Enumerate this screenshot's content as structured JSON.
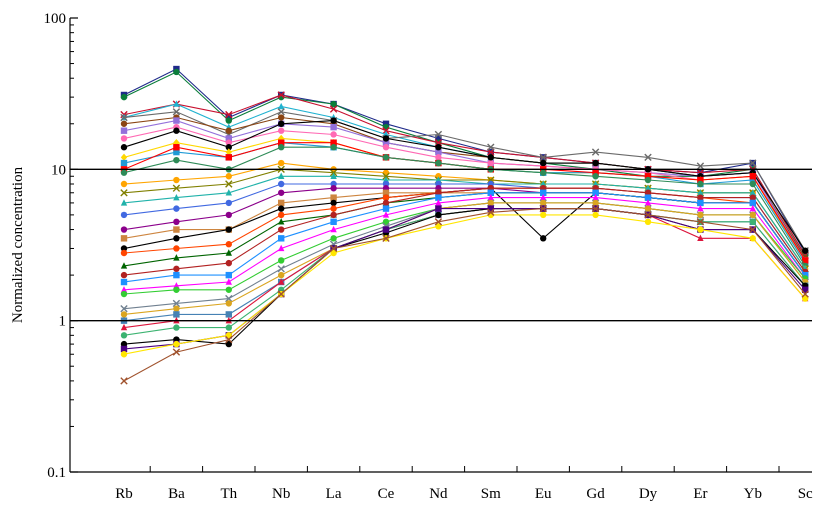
{
  "chart_data": {
    "type": "line",
    "title": "",
    "xlabel": "",
    "ylabel": "Normalized concentration",
    "yscale": "log",
    "ylim": [
      0.1,
      100
    ],
    "yticks": [
      "0.1",
      "1",
      "10",
      "100"
    ],
    "reference_lines": [
      1,
      10
    ],
    "categories": [
      "Rb",
      "Ba",
      "Th",
      "Nb",
      "La",
      "Ce",
      "Nd",
      "Sm",
      "Eu",
      "Gd",
      "Dy",
      "Er",
      "Yb",
      "Sc"
    ],
    "series": [
      {
        "color": "#1f2a8a",
        "marker": "square",
        "values": [
          31,
          46,
          22,
          31,
          27,
          20,
          16,
          13,
          12,
          11,
          10,
          9.5,
          11,
          2.8
        ]
      },
      {
        "color": "#0a7d3a",
        "marker": "circle",
        "values": [
          30,
          44,
          21,
          30,
          27,
          19,
          15,
          12,
          11,
          10,
          9,
          9,
          10,
          2.7
        ]
      },
      {
        "color": "#c8102e",
        "marker": "x",
        "values": [
          23,
          27,
          23,
          31,
          25,
          18,
          15,
          13,
          12,
          11,
          10,
          9.5,
          10,
          2.7
        ]
      },
      {
        "color": "#20b2d0",
        "marker": "triangle",
        "values": [
          22,
          27,
          19,
          26,
          22,
          17,
          14,
          12,
          11,
          11,
          10,
          9,
          9.5,
          2.6
        ]
      },
      {
        "color": "#6a6a6a",
        "marker": "x",
        "values": [
          22,
          24,
          17,
          24,
          21,
          16,
          17,
          14,
          12,
          13,
          12,
          10.5,
          11,
          2.9
        ]
      },
      {
        "color": "#8b4513",
        "marker": "circle",
        "values": [
          20,
          22,
          18,
          22,
          20,
          15,
          13,
          12,
          11,
          11,
          10,
          9,
          9.5,
          2.6
        ]
      },
      {
        "color": "#9370db",
        "marker": "square",
        "values": [
          18,
          21,
          16,
          20,
          19,
          15,
          13,
          11,
          10.5,
          10,
          9.5,
          9,
          9.5,
          2.5
        ]
      },
      {
        "color": "#ff69b4",
        "marker": "circle",
        "values": [
          16,
          19,
          15,
          18,
          17,
          14,
          12,
          11,
          10.5,
          10,
          9.5,
          8.5,
          9,
          2.5
        ]
      },
      {
        "color": "#000000",
        "marker": "circle",
        "values": [
          14,
          18,
          14,
          20,
          21,
          16,
          14,
          12,
          11,
          11,
          10,
          9,
          9.5,
          2.9
        ]
      },
      {
        "color": "#ffd700",
        "marker": "diamond",
        "values": [
          12,
          15,
          13,
          16,
          15,
          12,
          11,
          10,
          9.5,
          9.5,
          9,
          8.5,
          9,
          2.4
        ]
      },
      {
        "color": "#1f9ad6",
        "marker": "square",
        "values": [
          11,
          13,
          12,
          15,
          14,
          12,
          11,
          10,
          9.5,
          9.5,
          9,
          8,
          8.5,
          2.4
        ]
      },
      {
        "color": "#ff0000",
        "marker": "square",
        "values": [
          10,
          14,
          12,
          15,
          15,
          12,
          11,
          10,
          10,
          9.5,
          9,
          8.5,
          9,
          2.5
        ]
      },
      {
        "color": "#2e8b57",
        "marker": "circle",
        "values": [
          9.5,
          11.5,
          10,
          14,
          14,
          12,
          11,
          10,
          9.5,
          9,
          8.5,
          8,
          8,
          2.3
        ]
      },
      {
        "color": "#ffa500",
        "marker": "circle",
        "values": [
          8,
          8.5,
          9,
          11,
          10,
          9.5,
          9,
          8.5,
          8,
          8,
          7.5,
          7,
          7,
          2.2
        ]
      },
      {
        "color": "#808000",
        "marker": "x",
        "values": [
          7,
          7.5,
          8,
          10,
          9.5,
          9,
          8.5,
          8.5,
          8,
          8,
          7.5,
          7,
          7,
          2.2
        ]
      },
      {
        "color": "#20b2aa",
        "marker": "triangle",
        "values": [
          6,
          6.5,
          7,
          9,
          9,
          8.5,
          8.5,
          8,
          8,
          8,
          7.5,
          7,
          7,
          2.2
        ]
      },
      {
        "color": "#4169e1",
        "marker": "circle",
        "values": [
          5,
          5.5,
          6,
          8,
          8,
          8,
          8,
          8,
          7.5,
          7.5,
          7,
          6.5,
          6.5,
          2.1
        ]
      },
      {
        "color": "#8b008b",
        "marker": "circle",
        "values": [
          4,
          4.5,
          5,
          7,
          7.5,
          7.5,
          7.5,
          7.5,
          7,
          7,
          6.5,
          6,
          6,
          2
        ]
      },
      {
        "color": "#cd853f",
        "marker": "square",
        "values": [
          3.5,
          4,
          4,
          6,
          6.5,
          7,
          7,
          7,
          7,
          7,
          6.5,
          6,
          6,
          2
        ]
      },
      {
        "color": "#000000",
        "marker": "circle",
        "values": [
          3,
          3.5,
          4,
          5.5,
          6,
          6.5,
          7,
          7.5,
          3.5,
          7,
          6.5,
          6,
          6,
          2
        ]
      },
      {
        "color": "#ff4500",
        "marker": "circle",
        "values": [
          2.8,
          3,
          3.2,
          5,
          5.5,
          6.5,
          7,
          7.5,
          7.5,
          7.5,
          7,
          6.5,
          6,
          2
        ]
      },
      {
        "color": "#006400",
        "marker": "triangle",
        "values": [
          2.3,
          2.6,
          2.8,
          4.5,
          5,
          6,
          6.5,
          7,
          7,
          7,
          6.5,
          6,
          6,
          2
        ]
      },
      {
        "color": "#b22222",
        "marker": "circle",
        "values": [
          2,
          2.2,
          2.4,
          4,
          5,
          6,
          7,
          7.5,
          7.5,
          7.5,
          7,
          6.5,
          6.5,
          2.1
        ]
      },
      {
        "color": "#1e90ff",
        "marker": "square",
        "values": [
          1.8,
          2,
          2,
          3.5,
          4.5,
          5.5,
          6.5,
          7,
          7,
          7,
          6.5,
          6,
          6,
          2
        ]
      },
      {
        "color": "#ff00ff",
        "marker": "triangle",
        "values": [
          1.6,
          1.7,
          1.8,
          3,
          4,
          5,
          6,
          6.5,
          6.5,
          6.5,
          6,
          5.5,
          5.5,
          1.9
        ]
      },
      {
        "color": "#32cd32",
        "marker": "circle",
        "values": [
          1.5,
          1.6,
          1.6,
          2.5,
          3.5,
          4.5,
          5.5,
          6,
          6,
          6,
          5.5,
          5,
          5,
          1.9
        ]
      },
      {
        "color": "#708090",
        "marker": "x",
        "values": [
          1.2,
          1.3,
          1.4,
          2.2,
          3.2,
          4.2,
          5.5,
          6,
          6,
          6,
          5.5,
          5,
          5,
          1.8
        ]
      },
      {
        "color": "#daa520",
        "marker": "circle",
        "values": [
          1.1,
          1.2,
          1.3,
          2,
          3,
          4,
          5.5,
          6,
          6,
          6,
          5.5,
          5,
          5,
          1.8
        ]
      },
      {
        "color": "#4682b4",
        "marker": "square",
        "values": [
          1,
          1.1,
          1.1,
          1.8,
          3,
          4,
          5,
          5.5,
          5.5,
          5.5,
          5,
          4.5,
          4.5,
          1.7
        ]
      },
      {
        "color": "#dc143c",
        "marker": "triangle",
        "values": [
          0.9,
          1,
          1,
          1.8,
          3,
          4,
          5,
          5.5,
          5.5,
          5.5,
          5,
          3.5,
          3.5,
          1.4
        ]
      },
      {
        "color": "#3cb371",
        "marker": "circle",
        "values": [
          0.8,
          0.9,
          0.9,
          1.6,
          3,
          4,
          5,
          5.5,
          5.5,
          5.5,
          5,
          4.5,
          4.5,
          1.7
        ]
      },
      {
        "color": "#000000",
        "marker": "circle",
        "values": [
          0.7,
          0.75,
          0.7,
          1.5,
          3,
          3.8,
          5,
          5.5,
          5.5,
          5.5,
          5,
          4,
          4,
          1.7
        ]
      },
      {
        "color": "#4b0082",
        "marker": "square",
        "values": [
          0.65,
          0.7,
          0.8,
          1.5,
          3,
          4,
          5.5,
          5.5,
          5.5,
          5.5,
          5,
          4,
          4,
          1.6
        ]
      },
      {
        "color": "#ffe600",
        "marker": "circle",
        "values": [
          0.6,
          0.7,
          0.8,
          1.5,
          2.8,
          3.5,
          4.2,
          5,
          5,
          5,
          4.5,
          4,
          3.5,
          1.4
        ]
      },
      {
        "color": "#a0522d",
        "marker": "x",
        "values": [
          0.4,
          0.62,
          0.75,
          1.5,
          3,
          3.5,
          4.5,
          5.2,
          5.5,
          5.5,
          5,
          4.5,
          4,
          1.5
        ]
      }
    ]
  }
}
